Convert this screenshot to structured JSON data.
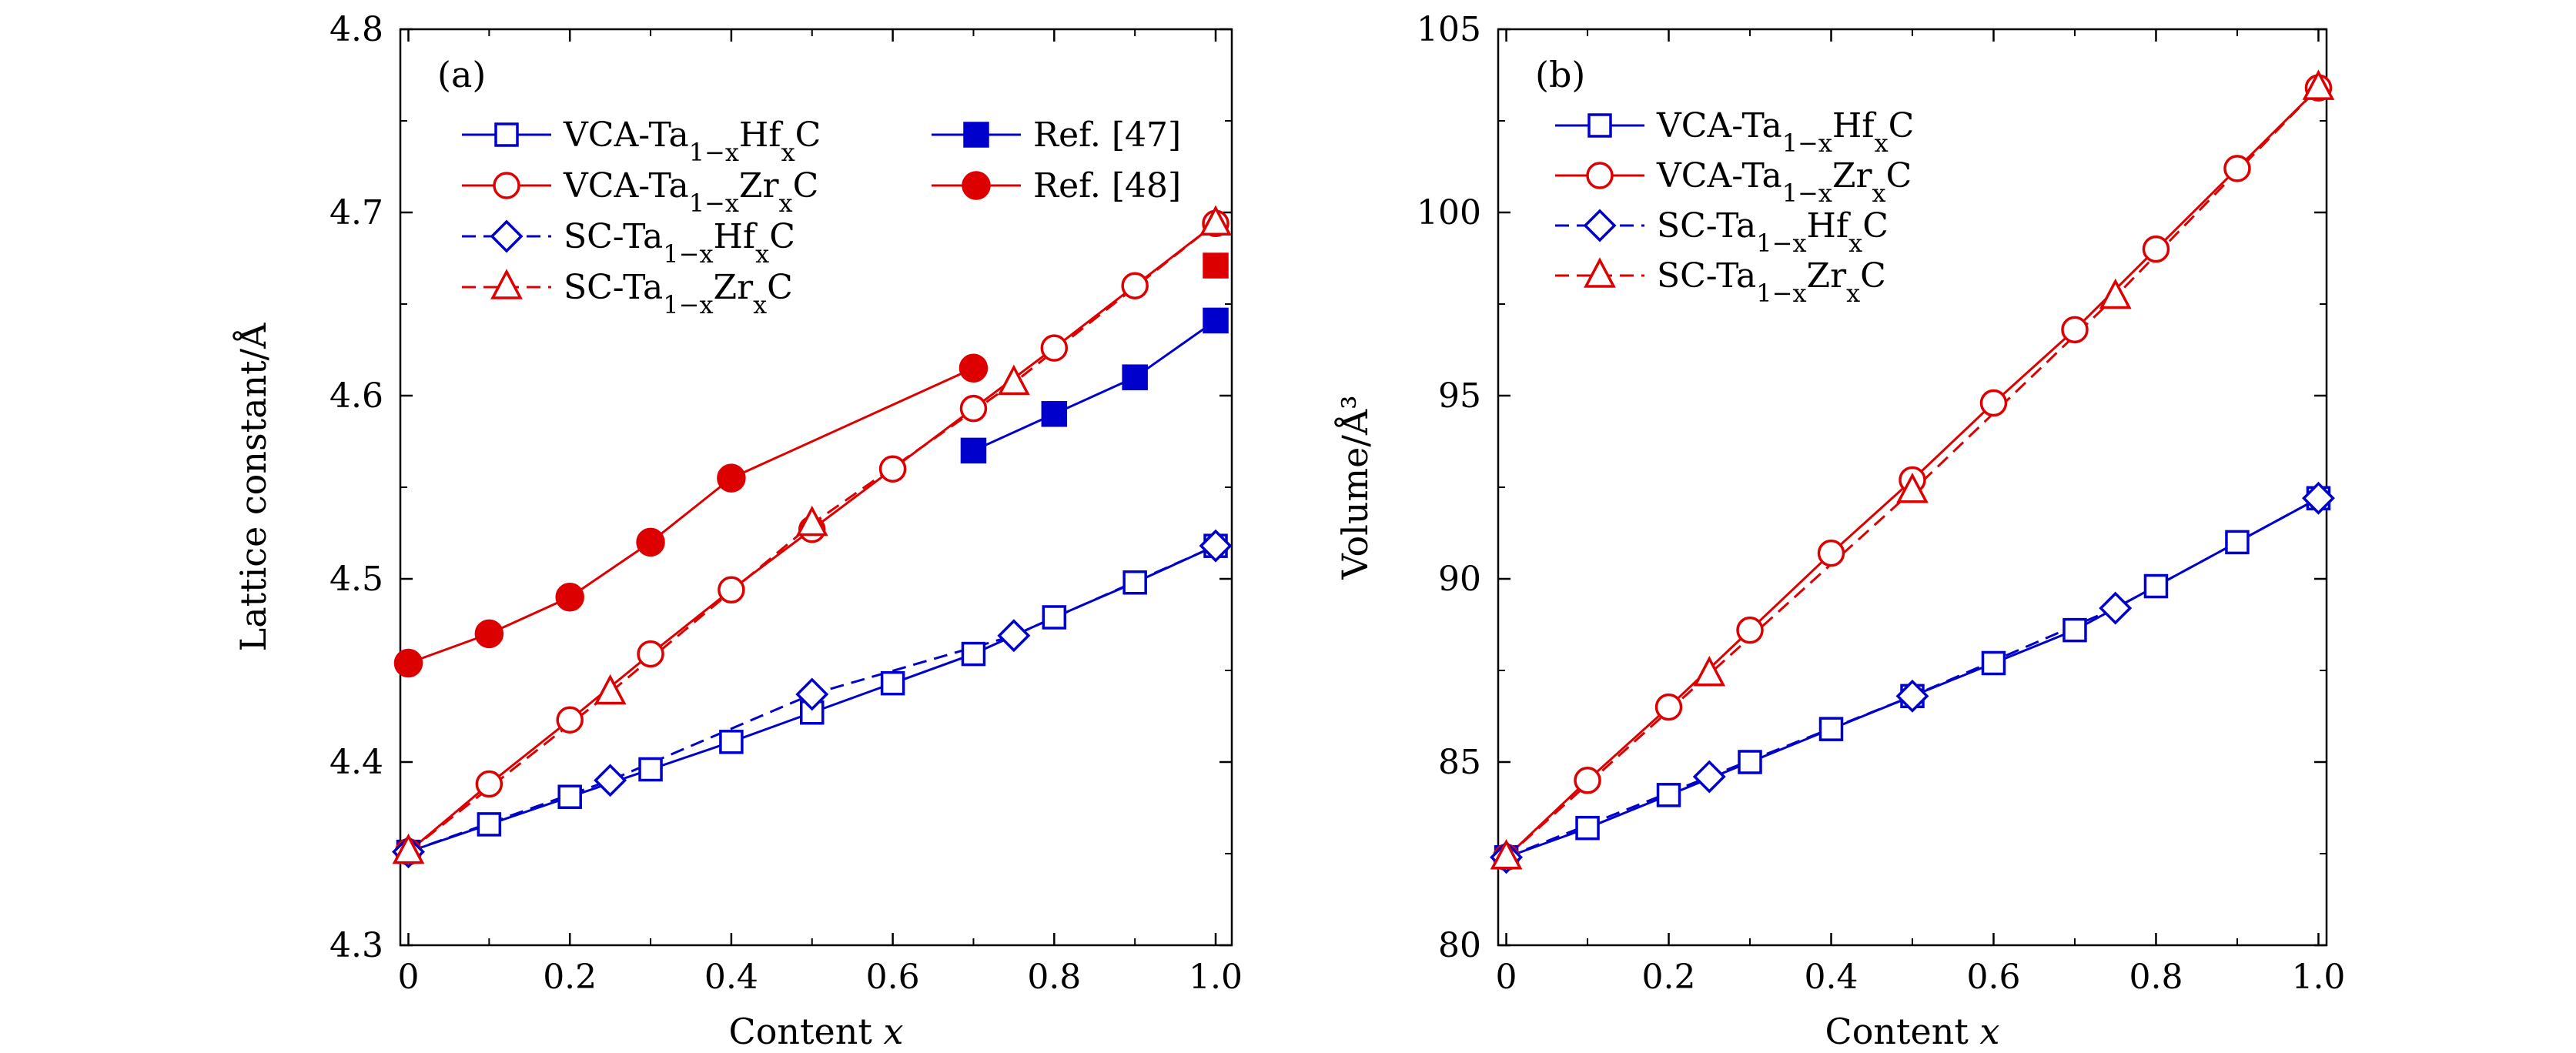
{
  "chart_data": [
    {
      "type": "line",
      "panel_label": "(a)",
      "xlabel": "Content x",
      "ylabel": "Lattice constant/Å",
      "xlim": [
        -0.01,
        1.02
      ],
      "ylim": [
        4.3,
        4.8
      ],
      "xticks": [
        0,
        0.2,
        0.4,
        0.6,
        0.8,
        1.0
      ],
      "xtick_labels": [
        "0",
        "0.2",
        "0.4",
        "0.6",
        "0.8",
        "1.0"
      ],
      "yticks": [
        4.3,
        4.4,
        4.5,
        4.6,
        4.7,
        4.8
      ],
      "ytick_labels": [
        "4.3",
        "4.4",
        "4.5",
        "4.6",
        "4.7",
        "4.8"
      ],
      "legend_position": "top-left",
      "series": [
        {
          "name": "VCA-Ta1−xHfxC",
          "color": "#0000cc",
          "marker": "square",
          "filled": false,
          "dash": "solid",
          "x": [
            0,
            0.1,
            0.2,
            0.3,
            0.4,
            0.5,
            0.6,
            0.7,
            0.8,
            0.9,
            1.0
          ],
          "y": [
            4.351,
            4.366,
            4.381,
            4.396,
            4.411,
            4.427,
            4.443,
            4.459,
            4.479,
            4.498,
            4.518
          ]
        },
        {
          "name": "VCA-Ta1−xZrxC",
          "color": "#dd0000",
          "marker": "circle",
          "filled": false,
          "dash": "solid",
          "x": [
            0,
            0.1,
            0.2,
            0.3,
            0.4,
            0.5,
            0.6,
            0.7,
            0.8,
            0.9,
            1.0
          ],
          "y": [
            4.351,
            4.388,
            4.423,
            4.459,
            4.494,
            4.527,
            4.56,
            4.593,
            4.626,
            4.66,
            4.694
          ]
        },
        {
          "name": "SC-Ta1−xHfxC",
          "color": "#0000cc",
          "marker": "diamond",
          "filled": false,
          "dash": "dashed",
          "x": [
            0,
            0.25,
            0.5,
            0.75,
            1.0
          ],
          "y": [
            4.351,
            4.39,
            4.437,
            4.469,
            4.518
          ]
        },
        {
          "name": "SC-Ta1−xZrxC",
          "color": "#dd0000",
          "marker": "triangle",
          "filled": false,
          "dash": "dashed",
          "x": [
            0,
            0.25,
            0.5,
            0.75,
            1.0
          ],
          "y": [
            4.351,
            4.438,
            4.53,
            4.607,
            4.694
          ]
        },
        {
          "name": "Ref. [47]",
          "color": "#0000cc",
          "marker": "square",
          "filled": true,
          "dash": "solid",
          "x": [
            0.7,
            0.8,
            0.9,
            1.0
          ],
          "y": [
            4.57,
            4.59,
            4.61,
            4.641
          ]
        },
        {
          "name": "Ref. [48]",
          "color": "#dd0000",
          "marker": "circle",
          "filled": true,
          "dash": "solid",
          "x": [
            0,
            0.1,
            0.2,
            0.3,
            0.4,
            0.7
          ],
          "y": [
            4.454,
            4.47,
            4.49,
            4.52,
            4.555,
            4.615
          ]
        },
        {
          "name": "",
          "color": "#dd0000",
          "marker": "square",
          "filled": true,
          "dash": "none",
          "x": [
            1.0
          ],
          "y": [
            4.671
          ]
        }
      ]
    },
    {
      "type": "line",
      "panel_label": "(b)",
      "xlabel": "Content x",
      "ylabel": "Volume/Å³",
      "xlim": [
        -0.01,
        1.01
      ],
      "ylim": [
        80,
        105
      ],
      "xticks": [
        0,
        0.2,
        0.4,
        0.6,
        0.8,
        1.0
      ],
      "xtick_labels": [
        "0",
        "0.2",
        "0.4",
        "0.6",
        "0.8",
        "1.0"
      ],
      "yticks": [
        80,
        85,
        90,
        95,
        100,
        105
      ],
      "ytick_labels": [
        "80",
        "85",
        "90",
        "95",
        "100",
        "105"
      ],
      "legend_position": "top-left",
      "series": [
        {
          "name": "VCA-Ta1−xHfxC",
          "color": "#0000cc",
          "marker": "square",
          "filled": false,
          "dash": "solid",
          "x": [
            0,
            0.1,
            0.2,
            0.3,
            0.4,
            0.5,
            0.6,
            0.7,
            0.8,
            0.9,
            1.0
          ],
          "y": [
            82.4,
            83.2,
            84.1,
            85.0,
            85.9,
            86.8,
            87.7,
            88.6,
            89.8,
            91.0,
            92.2
          ]
        },
        {
          "name": "VCA-Ta1−xZrxC",
          "color": "#dd0000",
          "marker": "circle",
          "filled": false,
          "dash": "solid",
          "x": [
            0,
            0.1,
            0.2,
            0.3,
            0.4,
            0.5,
            0.6,
            0.7,
            0.8,
            0.9,
            1.0
          ],
          "y": [
            82.4,
            84.5,
            86.5,
            88.6,
            90.7,
            92.7,
            94.8,
            96.8,
            99.0,
            101.2,
            103.4
          ]
        },
        {
          "name": "SC-Ta1−xHfxC",
          "color": "#0000cc",
          "marker": "diamond",
          "filled": false,
          "dash": "dashed",
          "x": [
            0,
            0.25,
            0.5,
            0.75,
            1.0
          ],
          "y": [
            82.4,
            84.6,
            86.8,
            89.2,
            92.2
          ]
        },
        {
          "name": "SC-Ta1−xZrxC",
          "color": "#dd0000",
          "marker": "triangle",
          "filled": false,
          "dash": "dashed",
          "x": [
            0,
            0.25,
            0.5,
            0.75,
            1.0
          ],
          "y": [
            82.4,
            87.4,
            92.4,
            97.7,
            103.4
          ]
        }
      ]
    }
  ]
}
